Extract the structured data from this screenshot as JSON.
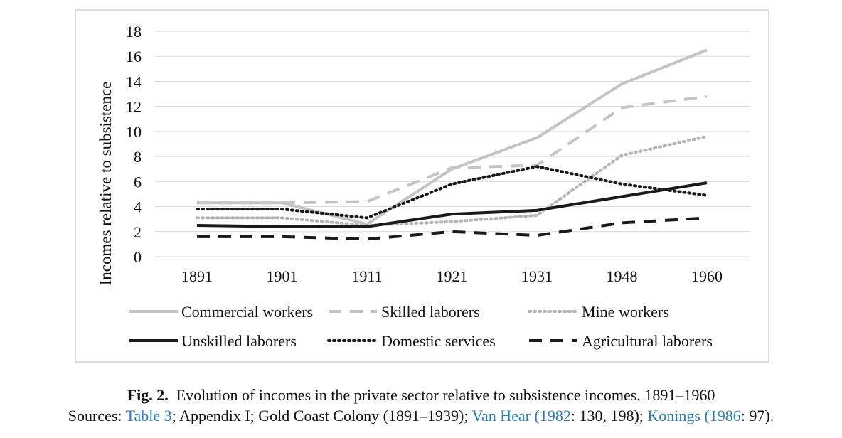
{
  "chart_data": {
    "type": "line",
    "title": "",
    "ylabel": "Incomes relative to subsistence",
    "xlabel": "",
    "categories": [
      "1891",
      "1901",
      "1911",
      "1921",
      "1931",
      "1948",
      "1960"
    ],
    "ylim": [
      0,
      18
    ],
    "yticks": [
      0,
      2,
      4,
      6,
      8,
      10,
      12,
      14,
      16,
      18
    ],
    "grid": "horizontal",
    "legend_position": "bottom",
    "series": [
      {
        "name": "Commercial workers",
        "values": [
          4.3,
          4.3,
          2.6,
          7.0,
          9.5,
          13.8,
          16.5
        ],
        "color": "#c4c4c4",
        "style": "solid"
      },
      {
        "name": "Skilled laborers",
        "values": [
          4.3,
          4.3,
          4.4,
          7.1,
          7.3,
          11.9,
          12.8
        ],
        "color": "#c4c4c4",
        "style": "dashed"
      },
      {
        "name": "Mine workers",
        "values": [
          3.1,
          3.1,
          2.5,
          2.8,
          3.3,
          8.1,
          9.6
        ],
        "color": "#b4b4b4",
        "style": "dotted"
      },
      {
        "name": "Unskilled laborers",
        "values": [
          2.5,
          2.4,
          2.4,
          3.4,
          3.7,
          4.8,
          5.9
        ],
        "color": "#1a1a1a",
        "style": "solid"
      },
      {
        "name": "Domestic services",
        "values": [
          3.8,
          3.8,
          3.1,
          5.8,
          7.2,
          5.8,
          4.9
        ],
        "color": "#1a1a1a",
        "style": "dotted"
      },
      {
        "name": "Agricultural laborers",
        "values": [
          1.6,
          1.6,
          1.4,
          2.0,
          1.7,
          2.7,
          3.1
        ],
        "color": "#1a1a1a",
        "style": "dashed"
      }
    ]
  },
  "caption": {
    "fig_label": "Fig. 2.",
    "title": "Evolution of incomes in the private sector relative to subsistence incomes, 1891–1960",
    "sources_prefix": "Sources: ",
    "link1": "Table 3",
    "text1": "; Appendix I; Gold Coast Colony (1891–1939); ",
    "link2": "Van Hear (1982",
    "text2": ": 130, 198); ",
    "link3": "Konings (1986",
    "text3": ": 97).",
    "link_color": "#2a7fb4"
  }
}
